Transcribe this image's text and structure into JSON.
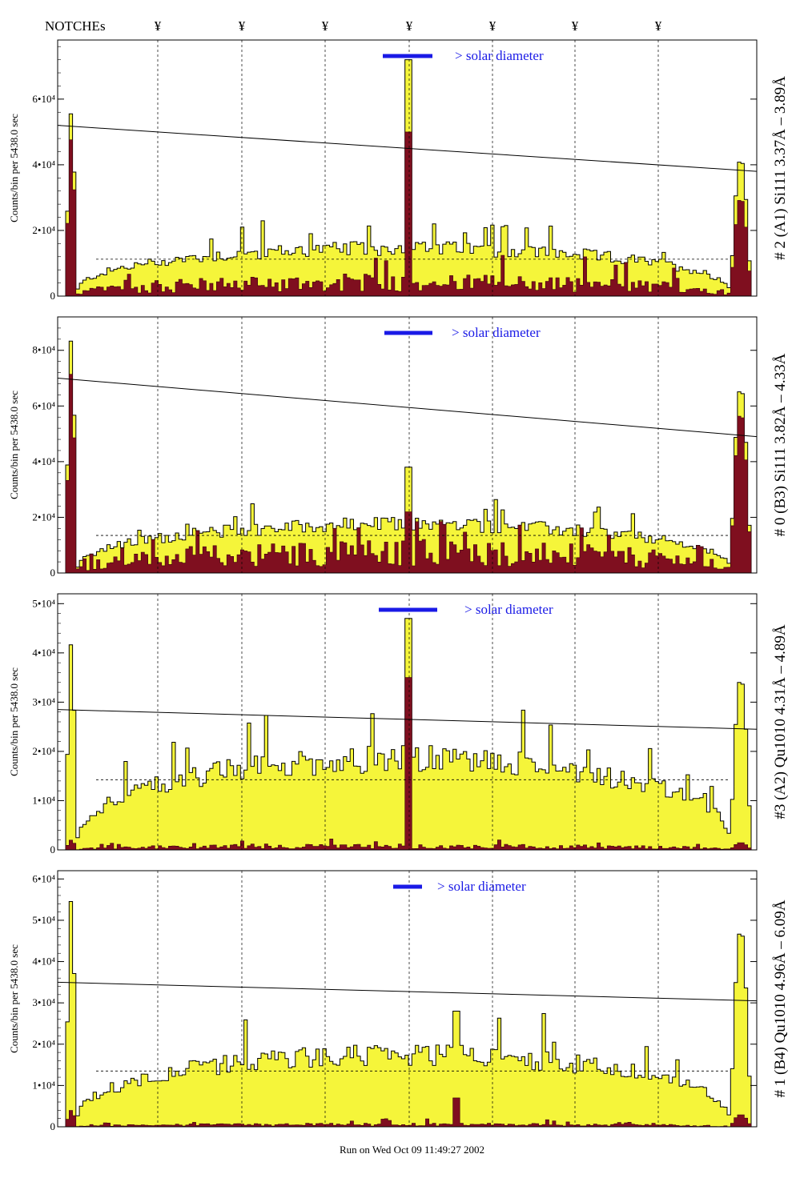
{
  "header": {
    "notches_label": "NOTCHEs",
    "notch_symbol": "¥",
    "notch_positions": [
      197,
      302,
      406,
      511,
      615,
      718,
      822
    ]
  },
  "footer": {
    "run_text": "Run on Wed Oct 09 11:49:27 2002"
  },
  "colors": {
    "total_fill": "#f5f53a",
    "lines_fill": "#7f0f1f",
    "solar_bar": "#1a1ae6"
  },
  "chart_data": [
    {
      "type": "area",
      "ylabel": "Counts/bin per   5438.0 sec",
      "right_label": "# 2 (A1) Si111  3.37Å – 3.89Å",
      "solar_text": "> solar diameter",
      "y_ticks": [
        {
          "v": 0,
          "label": "0"
        },
        {
          "v": 20000,
          "label": "2•10⁴"
        },
        {
          "v": 40000,
          "label": "4•10⁴"
        },
        {
          "v": 60000,
          "label": "6•10⁴"
        }
      ],
      "ylim": [
        0,
        78000
      ],
      "x_range": [
        72,
        945
      ],
      "trend": [
        52000,
        38000
      ],
      "peak": {
        "x": 509,
        "v": 72000,
        "lines_v": 50000
      },
      "edges": {
        "left_v": 56000,
        "left_lines": 48000,
        "right_v": 42000,
        "right_lines": 30000
      },
      "plateau_v": 15000,
      "lines_v": 4500
    },
    {
      "type": "area",
      "ylabel": "Counts/bin per   5438.0 sec",
      "right_label": "# 0 (B3) Si111  3.82Å – 4.33Å",
      "solar_text": "> solar diameter",
      "y_ticks": [
        {
          "v": 0,
          "label": "0"
        },
        {
          "v": 20000,
          "label": "2•10⁴"
        },
        {
          "v": 40000,
          "label": "4•10⁴"
        },
        {
          "v": 60000,
          "label": "6•10⁴"
        },
        {
          "v": 80000,
          "label": "8•10⁴"
        }
      ],
      "ylim": [
        0,
        92000
      ],
      "x_range": [
        72,
        945
      ],
      "trend": [
        70000,
        49000
      ],
      "peak": {
        "x": 509,
        "v": 38000,
        "lines_v": 22000
      },
      "edges": {
        "left_v": 84000,
        "left_lines": 72000,
        "right_v": 67000,
        "right_lines": 58000
      },
      "plateau_v": 18000,
      "lines_v": 8000
    },
    {
      "type": "area",
      "ylabel": "Counts/bin per   5438.0 sec",
      "right_label": "#3 (A2) Qu1010  4.31Å – 4.89Å",
      "solar_text": "> solar diameter",
      "y_ticks": [
        {
          "v": 0,
          "label": "0"
        },
        {
          "v": 10000,
          "label": "1•10⁴"
        },
        {
          "v": 20000,
          "label": "2•10⁴"
        },
        {
          "v": 30000,
          "label": "3•10⁴"
        },
        {
          "v": 40000,
          "label": "4•10⁴"
        },
        {
          "v": 50000,
          "label": "5•10⁴"
        }
      ],
      "ylim": [
        0,
        52000
      ],
      "x_range": [
        72,
        945
      ],
      "trend": [
        28500,
        24500
      ],
      "peak": {
        "x": 509,
        "v": 47000,
        "lines_v": 35000
      },
      "edges": {
        "left_v": 42000,
        "left_lines": 2000,
        "right_v": 35000,
        "right_lines": 1500
      },
      "plateau_v": 19000,
      "lines_v": 800
    },
    {
      "type": "area",
      "ylabel": "Counts/bin per   5438.0 sec",
      "right_label": "# 1 (B4) Qu1010 4.96Å – 6.09Å",
      "solar_text": "> solar diameter",
      "y_ticks": [
        {
          "v": 0,
          "label": "0"
        },
        {
          "v": 10000,
          "label": "1•10⁴"
        },
        {
          "v": 20000,
          "label": "2•10⁴"
        },
        {
          "v": 30000,
          "label": "3•10⁴"
        },
        {
          "v": 40000,
          "label": "4•10⁴"
        },
        {
          "v": 50000,
          "label": "5•10⁴"
        },
        {
          "v": 60000,
          "label": "6•10⁴"
        }
      ],
      "ylim": [
        0,
        62000
      ],
      "x_range": [
        72,
        945
      ],
      "trend": [
        35000,
        30500
      ],
      "peak": {
        "x": 571,
        "v": 28000,
        "lines_v": 7000
      },
      "edges": {
        "left_v": 55000,
        "left_lines": 4000,
        "right_v": 48000,
        "right_lines": 3000
      },
      "plateau_v": 18000,
      "lines_v": 600
    }
  ]
}
